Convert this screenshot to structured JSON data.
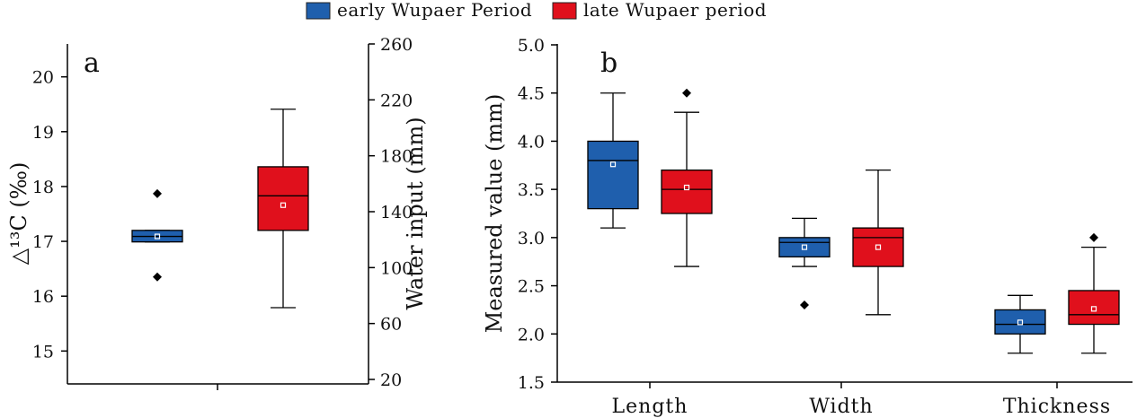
{
  "legend": [
    {
      "label": "early Wupaer Period",
      "color": "#1f5fad"
    },
    {
      "label": "late Wupaer period",
      "color": "#e0101c"
    }
  ],
  "chart_data": [
    {
      "type": "box",
      "panel_label": "a",
      "ylabel": "△¹³C (‰)",
      "ylim": [
        14.4,
        20.6
      ],
      "yticks": [
        15,
        16,
        17,
        18,
        19,
        20
      ],
      "y2label": "Water input (mm)",
      "y2lim": [
        20,
        260
      ],
      "y2ticks": [
        20,
        60,
        100,
        140,
        180,
        220,
        260
      ],
      "series": [
        {
          "name": "early Wupaer Period",
          "color": "#1f5fad",
          "boxes": [
            {
              "q1": 16.99,
              "median": 17.09,
              "q3": 17.2,
              "mean": 17.09,
              "whisker_low": 16.99,
              "whisker_high": 17.2,
              "outliers": [
                17.87,
                16.35
              ]
            }
          ]
        },
        {
          "name": "late Wupaer period",
          "color": "#e0101c",
          "boxes": [
            {
              "q1": 17.2,
              "median": 17.83,
              "q3": 18.36,
              "mean": 17.66,
              "whisker_low": 15.79,
              "whisker_high": 19.41,
              "outliers": []
            }
          ]
        }
      ]
    },
    {
      "type": "box",
      "panel_label": "b",
      "ylabel": "Measured value (mm)",
      "ylim": [
        1.5,
        5.0
      ],
      "yticks": [
        "1.5",
        "2.0",
        "2.5",
        "3.0",
        "3.5",
        "4.0",
        "4.5",
        "5.0"
      ],
      "categories": [
        "Length",
        "Width",
        "Thickness"
      ],
      "series": [
        {
          "name": "early Wupaer Period",
          "color": "#1f5fad",
          "boxes": [
            {
              "q1": 3.3,
              "median": 3.8,
              "q3": 4.0,
              "mean": 3.76,
              "whisker_low": 3.1,
              "whisker_high": 4.5,
              "outliers": []
            },
            {
              "q1": 2.8,
              "median": 2.95,
              "q3": 3.0,
              "mean": 2.9,
              "whisker_low": 2.7,
              "whisker_high": 3.2,
              "outliers": [
                2.3
              ]
            },
            {
              "q1": 2.0,
              "median": 2.1,
              "q3": 2.25,
              "mean": 2.12,
              "whisker_low": 1.8,
              "whisker_high": 2.4,
              "outliers": []
            }
          ]
        },
        {
          "name": "late Wupaer period",
          "color": "#e0101c",
          "boxes": [
            {
              "q1": 3.25,
              "median": 3.5,
              "q3": 3.7,
              "mean": 3.52,
              "whisker_low": 2.7,
              "whisker_high": 4.3,
              "outliers": [
                4.5
              ]
            },
            {
              "q1": 2.7,
              "median": 3.0,
              "q3": 3.1,
              "mean": 2.9,
              "whisker_low": 2.2,
              "whisker_high": 3.7,
              "outliers": []
            },
            {
              "q1": 2.1,
              "median": 2.2,
              "q3": 2.45,
              "mean": 2.26,
              "whisker_low": 1.8,
              "whisker_high": 2.9,
              "outliers": [
                3.0
              ]
            }
          ]
        }
      ]
    }
  ]
}
